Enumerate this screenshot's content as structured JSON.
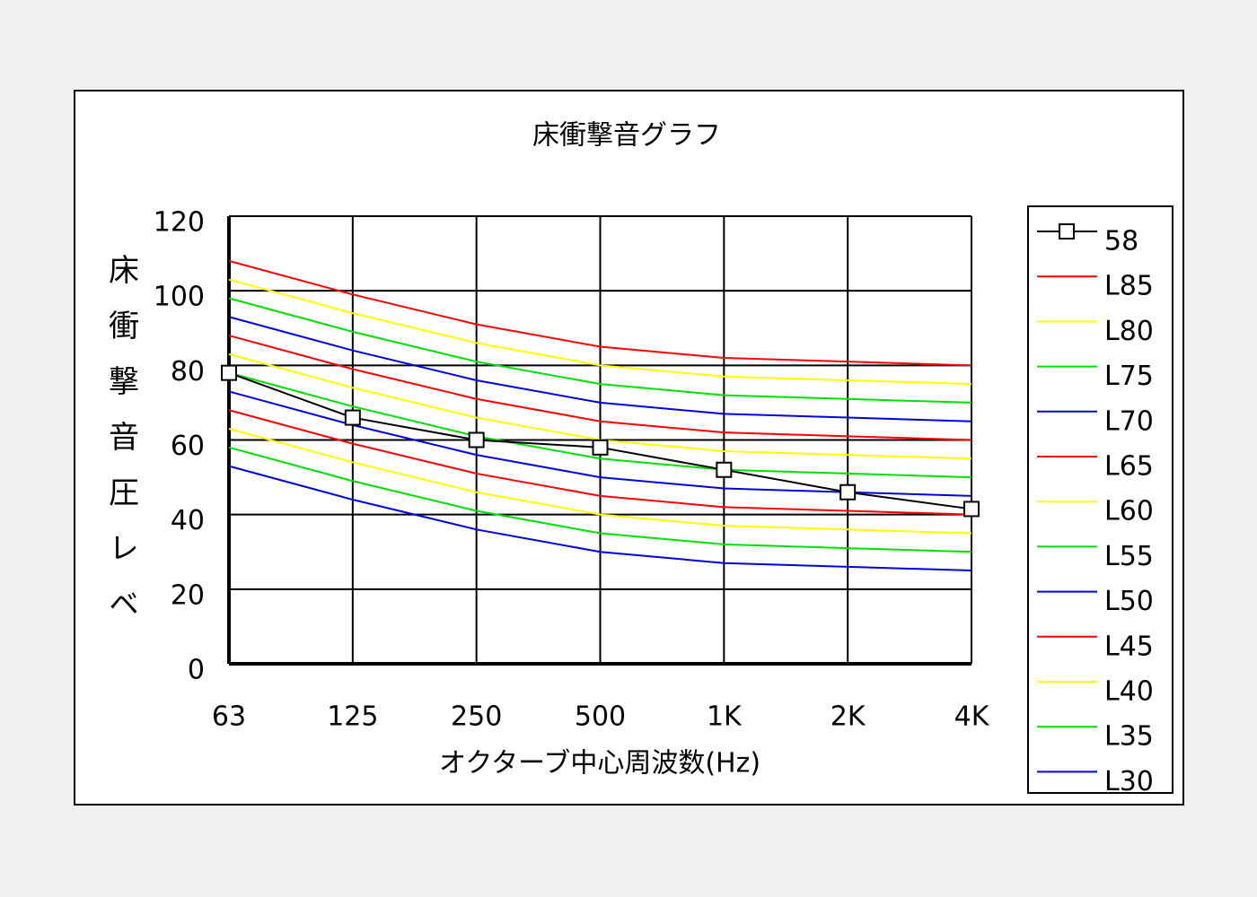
{
  "chart_data": {
    "type": "line",
    "title": "床衝撃音グラフ",
    "x_label": "オクターブ中心周波数(Hz)",
    "y_label": "床衝撃音圧レベ",
    "categories": [
      "63",
      "125",
      "250",
      "500",
      "1K",
      "2K",
      "4K"
    ],
    "ylim": [
      0,
      120
    ],
    "yticks": [
      0,
      20,
      40,
      60,
      80,
      100,
      120
    ],
    "grid": true,
    "series": [
      {
        "name": "58",
        "color": "#000000",
        "marker": "square",
        "values": [
          78,
          66,
          60,
          58,
          52,
          46,
          41.5
        ]
      },
      {
        "name": "L85",
        "color": "#ff0000",
        "values": [
          108,
          99,
          91,
          85,
          82,
          81,
          80
        ]
      },
      {
        "name": "L80",
        "color": "#ffff00",
        "values": [
          103,
          94,
          86,
          80,
          77,
          76,
          75
        ]
      },
      {
        "name": "L75",
        "color": "#00e000",
        "values": [
          98,
          89,
          81,
          75,
          72,
          71,
          70
        ]
      },
      {
        "name": "L70",
        "color": "#0000e0",
        "values": [
          93,
          84,
          76,
          70,
          67,
          66,
          65
        ]
      },
      {
        "name": "L65",
        "color": "#ff0000",
        "values": [
          88,
          79,
          71,
          65,
          62,
          61,
          60
        ]
      },
      {
        "name": "L60",
        "color": "#ffff00",
        "values": [
          83,
          74,
          66,
          60,
          57,
          56,
          55
        ]
      },
      {
        "name": "L55",
        "color": "#00e000",
        "values": [
          78,
          69,
          61,
          55,
          52,
          51,
          50
        ]
      },
      {
        "name": "L50",
        "color": "#0000e0",
        "values": [
          73,
          64,
          56,
          50,
          47,
          46,
          45
        ]
      },
      {
        "name": "L45",
        "color": "#ff0000",
        "values": [
          68,
          59,
          51,
          45,
          42,
          41,
          40
        ]
      },
      {
        "name": "L40",
        "color": "#ffff00",
        "values": [
          63,
          54,
          46,
          40,
          37,
          36,
          35
        ]
      },
      {
        "name": "L35",
        "color": "#00e000",
        "values": [
          58,
          49,
          41,
          35,
          32,
          31,
          30
        ]
      },
      {
        "name": "L30",
        "color": "#0000e0",
        "values": [
          53,
          44,
          36,
          30,
          27,
          26,
          25
        ]
      }
    ]
  }
}
